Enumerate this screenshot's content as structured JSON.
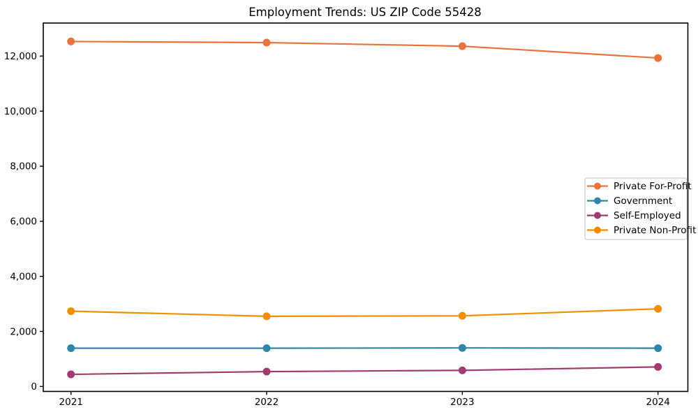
{
  "chart_data": {
    "type": "line",
    "title": "Employment Trends: US ZIP Code 55428",
    "x": [
      2021,
      2022,
      2023,
      2024
    ],
    "xtick_labels": [
      "2021",
      "2022",
      "2023",
      "2024"
    ],
    "series": [
      {
        "name": "Private For-Profit",
        "color": "#E8743B",
        "values": [
          12530,
          12490,
          12360,
          11930
        ]
      },
      {
        "name": "Government",
        "color": "#2E86AB",
        "values": [
          1390,
          1390,
          1400,
          1390
        ]
      },
      {
        "name": "Self-Employed",
        "color": "#A23B72",
        "values": [
          440,
          540,
          585,
          710
        ]
      },
      {
        "name": "Private Non-Profit",
        "color": "#F18F01",
        "values": [
          2735,
          2550,
          2565,
          2820
        ]
      }
    ],
    "yticks": [
      0,
      2000,
      4000,
      6000,
      8000,
      10000,
      12000
    ],
    "ytick_labels": [
      "0",
      "2,000",
      "4,000",
      "6,000",
      "8,000",
      "10,000",
      "12,000"
    ],
    "ylim": [
      -180,
      13200
    ],
    "xlabel": "",
    "ylabel": "",
    "grid": false,
    "legend_position": "right",
    "marker": "circle",
    "axis_color": "#000000",
    "legend_border_color": "#cccccc",
    "background_color": "#ffffff"
  }
}
